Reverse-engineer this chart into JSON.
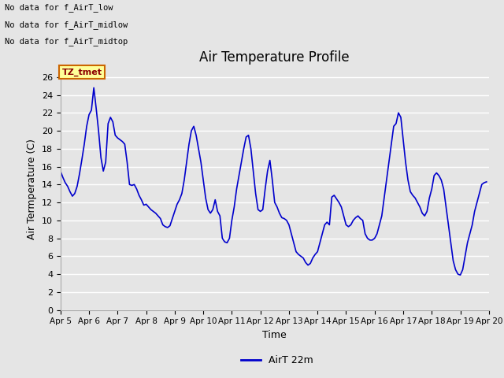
{
  "title": "Air Temperature Profile",
  "xlabel": "Time",
  "ylabel": "Air Termperature (C)",
  "ylim": [
    0,
    27
  ],
  "line_color": "#0000cc",
  "line_width": 1.2,
  "bg_color": "#e5e5e5",
  "grid_color": "white",
  "legend_label": "AirT 22m",
  "annotations_top": [
    "No data for f_AirT_low",
    "No data for f_AirT_midlow",
    "No data for f_AirT_midtop"
  ],
  "tz_label": "TZ_tmet",
  "x_tick_labels": [
    "Apr 5",
    "Apr 6",
    "Apr 7",
    "Apr 8",
    "Apr 9",
    "Apr 10",
    "Apr 11",
    "Apr 12",
    "Apr 13",
    "Apr 14",
    "Apr 15",
    "Apr 16",
    "Apr 17",
    "Apr 18",
    "Apr 19",
    "Apr 20"
  ],
  "y_ticks": [
    0,
    2,
    4,
    6,
    8,
    10,
    12,
    14,
    16,
    18,
    20,
    22,
    24,
    26
  ],
  "data_x": [
    5.0,
    5.083,
    5.167,
    5.25,
    5.333,
    5.417,
    5.5,
    5.583,
    5.667,
    5.75,
    5.833,
    5.917,
    6.0,
    6.083,
    6.167,
    6.25,
    6.333,
    6.417,
    6.5,
    6.583,
    6.667,
    6.75,
    6.833,
    6.917,
    7.0,
    7.083,
    7.167,
    7.25,
    7.333,
    7.417,
    7.5,
    7.583,
    7.667,
    7.75,
    7.833,
    7.917,
    8.0,
    8.083,
    8.167,
    8.25,
    8.333,
    8.417,
    8.5,
    8.583,
    8.667,
    8.75,
    8.833,
    8.917,
    9.0,
    9.083,
    9.167,
    9.25,
    9.333,
    9.417,
    9.5,
    9.583,
    9.667,
    9.75,
    9.833,
    9.917,
    10.0,
    10.083,
    10.167,
    10.25,
    10.333,
    10.417,
    10.5,
    10.583,
    10.667,
    10.75,
    10.833,
    10.917,
    11.0,
    11.083,
    11.167,
    11.25,
    11.333,
    11.417,
    11.5,
    11.583,
    11.667,
    11.75,
    11.833,
    11.917,
    12.0,
    12.083,
    12.167,
    12.25,
    12.333,
    12.417,
    12.5,
    12.583,
    12.667,
    12.75,
    12.833,
    12.917,
    13.0,
    13.083,
    13.167,
    13.25,
    13.333,
    13.417,
    13.5,
    13.583,
    13.667,
    13.75,
    13.833,
    13.917,
    14.0,
    14.083,
    14.167,
    14.25,
    14.333,
    14.417,
    14.5,
    14.583,
    14.667,
    14.75,
    14.833,
    14.917,
    15.0,
    15.083,
    15.167,
    15.25,
    15.333,
    15.417,
    15.5,
    15.583,
    15.667,
    15.75,
    15.833,
    15.917,
    16.0,
    16.083,
    16.167,
    16.25,
    16.333,
    16.417,
    16.5,
    16.583,
    16.667,
    16.75,
    16.833,
    16.917,
    17.0,
    17.083,
    17.167,
    17.25,
    17.333,
    17.417,
    17.5,
    17.583,
    17.667,
    17.75,
    17.833,
    17.917,
    18.0,
    18.083,
    18.167,
    18.25,
    18.333,
    18.417,
    18.5,
    18.583,
    18.667,
    18.75,
    18.833,
    18.917,
    19.0,
    19.083,
    19.167,
    19.25,
    19.333,
    19.417,
    19.5,
    19.583,
    19.667,
    19.75,
    19.833,
    19.917
  ],
  "data_y": [
    15.5,
    14.8,
    14.2,
    13.8,
    13.2,
    12.7,
    13.0,
    13.8,
    15.2,
    16.8,
    18.5,
    20.5,
    21.8,
    22.3,
    24.8,
    22.5,
    20.0,
    17.0,
    15.5,
    16.5,
    20.8,
    21.5,
    21.0,
    19.5,
    19.2,
    19.0,
    18.8,
    18.5,
    16.5,
    14.0,
    13.9,
    14.0,
    13.5,
    12.8,
    12.3,
    11.7,
    11.8,
    11.5,
    11.2,
    11.0,
    10.8,
    10.5,
    10.2,
    9.5,
    9.3,
    9.2,
    9.4,
    10.2,
    11.0,
    11.8,
    12.3,
    13.0,
    14.5,
    16.5,
    18.5,
    20.0,
    20.5,
    19.5,
    18.0,
    16.5,
    14.5,
    12.5,
    11.2,
    10.8,
    11.2,
    12.3,
    11.0,
    10.5,
    8.0,
    7.6,
    7.5,
    8.0,
    10.0,
    11.5,
    13.5,
    15.0,
    16.5,
    18.0,
    19.3,
    19.5,
    18.0,
    15.5,
    13.0,
    11.2,
    11.0,
    11.2,
    13.5,
    15.5,
    16.7,
    14.5,
    12.0,
    11.5,
    10.8,
    10.3,
    10.2,
    10.0,
    9.5,
    8.5,
    7.5,
    6.5,
    6.2,
    6.0,
    5.8,
    5.3,
    5.0,
    5.2,
    5.8,
    6.2,
    6.5,
    7.5,
    8.5,
    9.5,
    9.8,
    9.5,
    12.6,
    12.8,
    12.4,
    12.0,
    11.5,
    10.5,
    9.5,
    9.3,
    9.5,
    10.0,
    10.3,
    10.5,
    10.2,
    10.0,
    8.5,
    8.0,
    7.8,
    7.8,
    8.0,
    8.5,
    9.5,
    10.5,
    12.5,
    14.5,
    16.5,
    18.5,
    20.5,
    20.8,
    22.0,
    21.5,
    19.0,
    16.5,
    14.5,
    13.2,
    12.8,
    12.5,
    12.0,
    11.5,
    10.8,
    10.5,
    11.0,
    12.5,
    13.5,
    15.0,
    15.3,
    15.0,
    14.5,
    13.5,
    11.5,
    9.5,
    7.5,
    5.5,
    4.5,
    4.0,
    3.9,
    4.5,
    6.0,
    7.5,
    8.5,
    9.5,
    11.0,
    12.0,
    13.0,
    14.0,
    14.2,
    14.3
  ],
  "figsize": [
    6.4,
    4.8
  ],
  "dpi": 100,
  "title_fontsize": 12,
  "axis_label_fontsize": 9,
  "tick_fontsize": 8
}
